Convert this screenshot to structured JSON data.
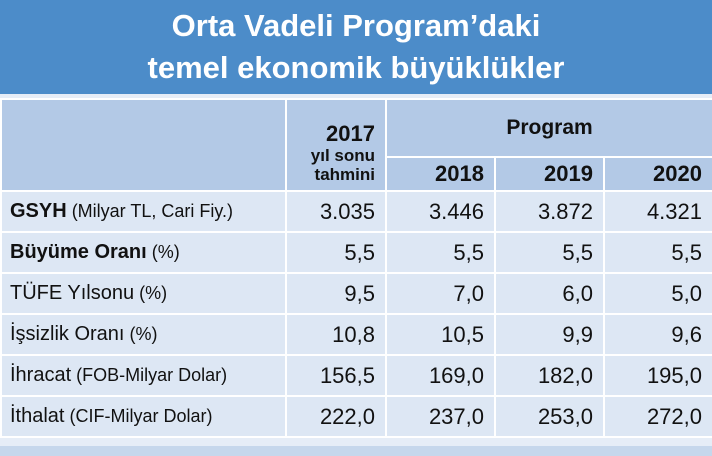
{
  "title_line1": "Orta Vadeli Program’daki",
  "title_line2": "temel ekonomik büyüklükler",
  "chart_data": {
    "type": "table",
    "group_header": "Program",
    "estimate_header": {
      "year": "2017",
      "line2": "yıl sonu",
      "line3": "tahmini"
    },
    "columns": [
      "2017 yıl sonu tahmini",
      "2018",
      "2019",
      "2020"
    ],
    "program_years": [
      "2018",
      "2019",
      "2020"
    ],
    "rows": [
      {
        "name": "GSYH",
        "unit": " (Milyar TL, Cari Fiy.)",
        "bold": true,
        "values": [
          "3.035",
          "3.446",
          "3.872",
          "4.321"
        ]
      },
      {
        "name": "Büyüme Oranı",
        "unit": " (%)",
        "bold": true,
        "values": [
          "5,5",
          "5,5",
          "5,5",
          "5,5"
        ]
      },
      {
        "name": "TÜFE Yılsonu",
        "unit": " (%)",
        "bold": false,
        "values": [
          "9,5",
          "7,0",
          "6,0",
          "5,0"
        ]
      },
      {
        "name": "İşsizlik Oranı",
        "unit": " (%)",
        "bold": false,
        "values": [
          "10,8",
          "10,5",
          "9,9",
          "9,6"
        ]
      },
      {
        "name": "İhracat",
        "unit": " (FOB-Milyar Dolar)",
        "bold": false,
        "values": [
          "156,5",
          "169,0",
          "182,0",
          "195,0"
        ]
      },
      {
        "name": "İthalat",
        "unit": " (CIF-Milyar Dolar)",
        "bold": false,
        "values": [
          "222,0",
          "237,0",
          "253,0",
          "272,0"
        ]
      }
    ]
  },
  "colors": {
    "title_bg": "#4c8cc9",
    "header_bg": "#b3c9e6",
    "row_bg": "#dde7f4"
  }
}
